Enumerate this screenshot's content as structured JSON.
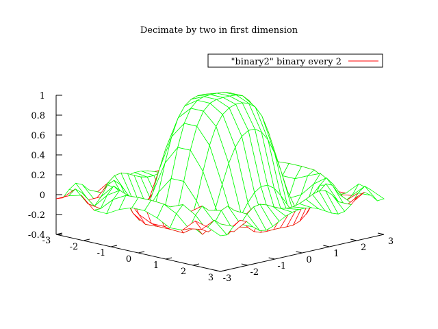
{
  "chart_data": {
    "type": "surface",
    "title": "Decimate by two in first dimension",
    "legend": {
      "label": "\"binary2\" binary every 2",
      "placement": "top-right",
      "sample_color": "#ff0000"
    },
    "z_axis": {
      "ticks": [
        "1",
        "0.8",
        "0.6",
        "0.4",
        "0.2",
        "0",
        "-0.2",
        "-0.4"
      ],
      "values": [
        1,
        0.8,
        0.6,
        0.4,
        0.2,
        0,
        -0.2,
        -0.4
      ],
      "range": [
        -0.4,
        1
      ]
    },
    "x_axis": {
      "ticks": [
        "-3",
        "-2",
        "-1",
        "0",
        "1",
        "2",
        "3"
      ],
      "values": [
        -3,
        -2,
        -1,
        0,
        1,
        2,
        3
      ],
      "range": [
        -3,
        3
      ]
    },
    "y_axis": {
      "ticks": [
        "-3",
        "-2",
        "-1",
        "0",
        "1",
        "2",
        "3"
      ],
      "values": [
        -3,
        -2,
        -1,
        0,
        1,
        2,
        3
      ],
      "range": [
        -3,
        3
      ]
    },
    "function": "sin(r^2)/r^2 (sinc-like radial surface)",
    "x_samples": 14,
    "y_samples": 26,
    "top_color": "#00ff00",
    "bottom_color": "#ff0000",
    "grid": false
  }
}
